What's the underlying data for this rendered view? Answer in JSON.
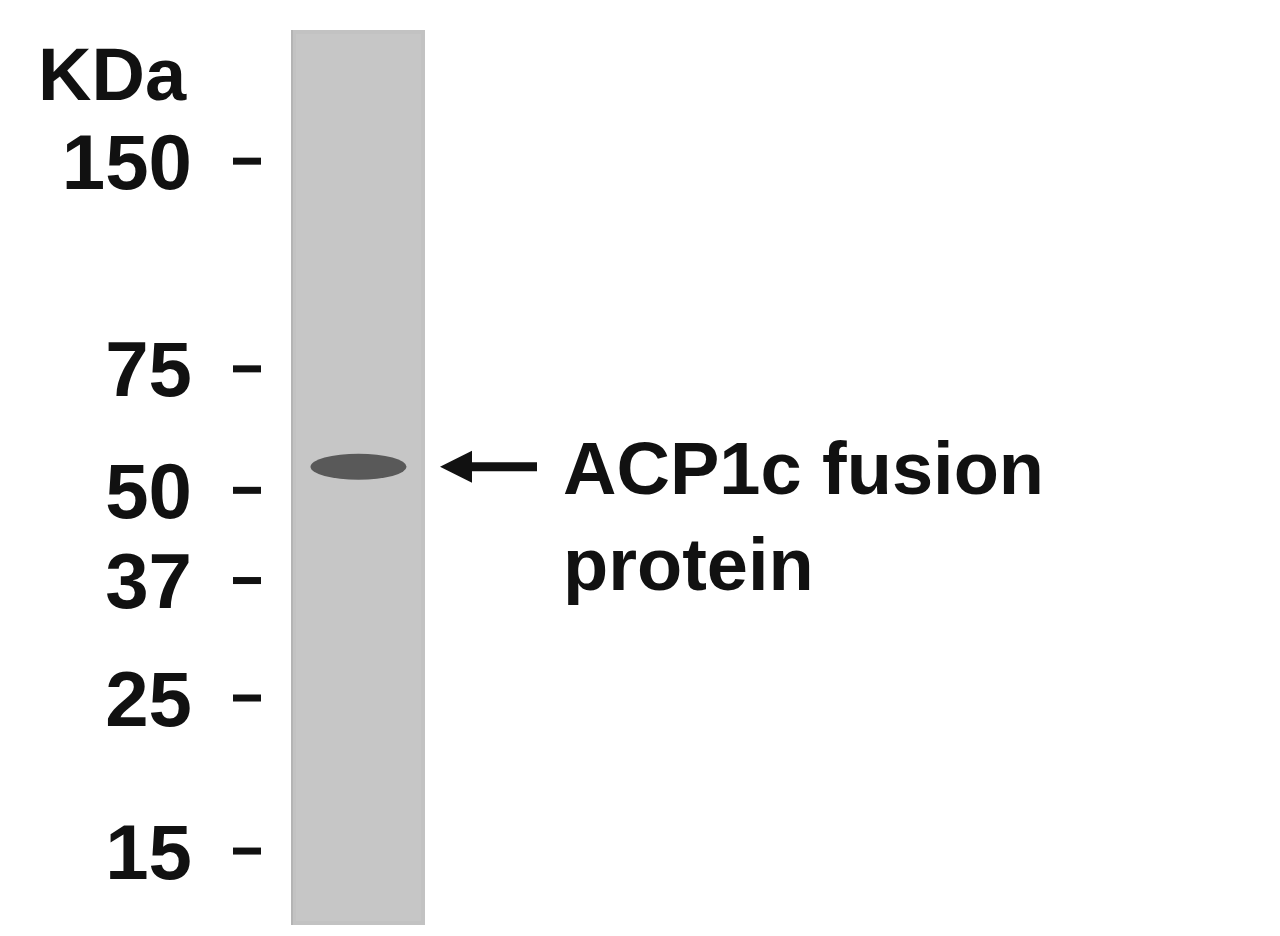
{
  "chart_data": {
    "type": "blot",
    "y_label": "KDa",
    "categories": [
      null
    ],
    "values": [
      54
    ],
    "log": "y",
    "ylim": [
      11.7,
      232
    ],
    "yticks": [
      15,
      25,
      37,
      50,
      75,
      150
    ],
    "annotation": [
      "ACP1c fusion",
      "protein"
    ],
    "color": "#4d4d4d",
    "grid": false
  }
}
